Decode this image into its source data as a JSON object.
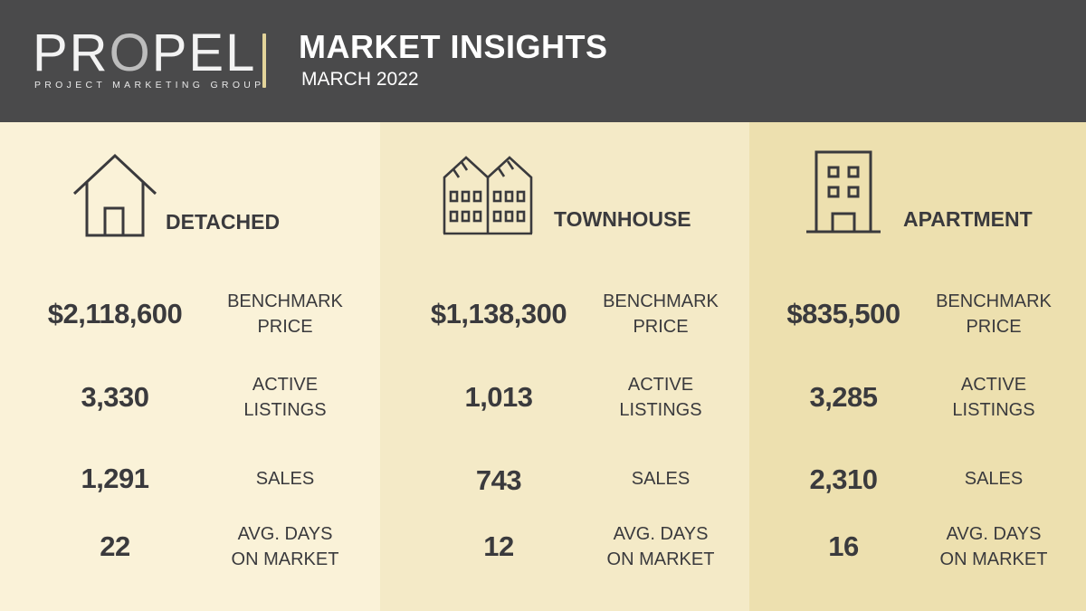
{
  "header": {
    "logo_text_a": "PR",
    "logo_text_o": "O",
    "logo_text_b": "PEL",
    "logo_subtitle": "PROJECT MARKETING GROUP",
    "title": "MARKET INSIGHTS",
    "date": "MARCH 2022"
  },
  "colors": {
    "header_bg": "#4a4a4b",
    "accent_gold": "#e3d49a",
    "detached_bg": "#faf2d8",
    "townhouse_bg": "#f4eac7",
    "apartment_bg": "#ede0af"
  },
  "labels": {
    "benchmark_1": "BENCHMARK",
    "benchmark_2": "PRICE",
    "active_1": "ACTIVE",
    "active_2": "LISTINGS",
    "sales": "SALES",
    "days_1": "AVG. DAYS",
    "days_2": "ON MARKET"
  },
  "categories": [
    {
      "name": "DETACHED",
      "icon": "house-icon",
      "benchmark_price": "$2,118,600",
      "active_listings": "3,330",
      "sales": "1,291",
      "avg_days": "22"
    },
    {
      "name": "TOWNHOUSE",
      "icon": "townhouse-icon",
      "benchmark_price": "$1,138,300",
      "active_listings": "1,013",
      "sales": "743",
      "avg_days": "12"
    },
    {
      "name": "APARTMENT",
      "icon": "apartment-building-icon",
      "benchmark_price": "$835,500",
      "active_listings": "3,285",
      "sales": "2,310",
      "avg_days": "16"
    }
  ]
}
